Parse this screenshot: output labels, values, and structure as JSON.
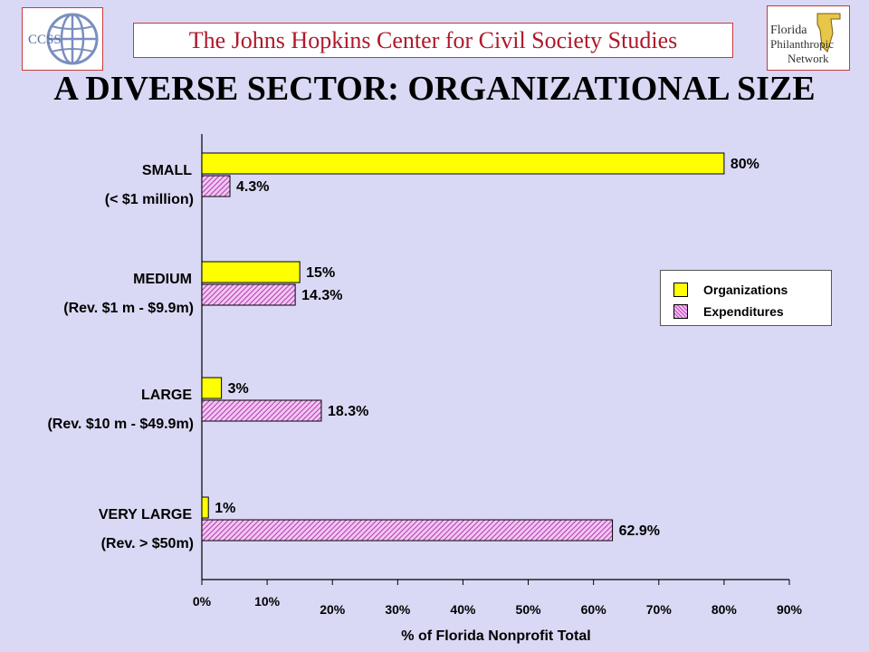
{
  "header": {
    "banner_text": "The Johns Hopkins Center for Civil Society Studies",
    "title": "A DIVERSE SECTOR: ORGANIZATIONAL SIZE",
    "logo_left_text": "CCSS",
    "logo_right_text": "Florida Philanthropic Network"
  },
  "colors": {
    "background": "#d9d9f5",
    "organizations": "#ffff00",
    "expenditures": "#c04ac0",
    "banner_text": "#b0182b"
  },
  "chart_data": {
    "type": "bar",
    "orientation": "horizontal",
    "categories": [
      {
        "name": "SMALL",
        "sub": "(< $1 million)"
      },
      {
        "name": "MEDIUM",
        "sub": "(Rev. $1 m - $9.9m)"
      },
      {
        "name": "LARGE",
        "sub": "(Rev. $10 m - $49.9m)"
      },
      {
        "name": "VERY LARGE",
        "sub": "(Rev. > $50m)"
      }
    ],
    "series": [
      {
        "name": "Organizations",
        "values": [
          80,
          15,
          3,
          1
        ],
        "labels": [
          "80%",
          "15%",
          "3%",
          "1%"
        ]
      },
      {
        "name": "Expenditures",
        "values": [
          4.3,
          14.3,
          18.3,
          62.9
        ],
        "labels": [
          "4.3%",
          "14.3%",
          "18.3%",
          "62.9%"
        ]
      }
    ],
    "xlim": [
      0,
      90
    ],
    "xticks": [
      "0%",
      "10%",
      "20%",
      "30%",
      "40%",
      "50%",
      "60%",
      "70%",
      "80%",
      "90%"
    ],
    "xlabel": "% of Florida Nonprofit Total",
    "legend_position": "right",
    "grid": false
  }
}
